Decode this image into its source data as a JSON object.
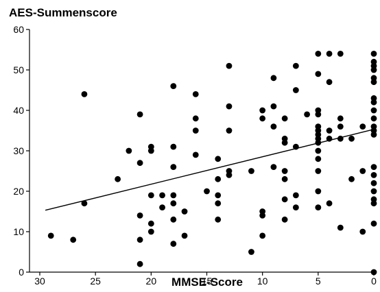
{
  "chart_data": {
    "type": "scatter",
    "title": "AES-Summenscore",
    "xlabel": "MMSE-Score",
    "ylabel": "",
    "x_reversed": true,
    "xlim": [
      30,
      0
    ],
    "ylim": [
      0,
      60
    ],
    "xticks": [
      "30",
      "25",
      "20",
      "15",
      "10",
      "5",
      "0"
    ],
    "yticks": [
      "0",
      "10",
      "20",
      "30",
      "40",
      "50",
      "60"
    ],
    "grid": false,
    "legend": "none",
    "marker_color": "#000000",
    "series": [
      {
        "points": [
          [
            29,
            9
          ],
          [
            27,
            8
          ],
          [
            26,
            44
          ],
          [
            26,
            17
          ],
          [
            23,
            23
          ],
          [
            22,
            30
          ],
          [
            21,
            39
          ],
          [
            21,
            27
          ],
          [
            21,
            14
          ],
          [
            21,
            8
          ],
          [
            21,
            2
          ],
          [
            20,
            31
          ],
          [
            20,
            30
          ],
          [
            20,
            19
          ],
          [
            20,
            12
          ],
          [
            20,
            10
          ],
          [
            19,
            19
          ],
          [
            19,
            16
          ],
          [
            18,
            46
          ],
          [
            18,
            31
          ],
          [
            18,
            26
          ],
          [
            18,
            19
          ],
          [
            18,
            17
          ],
          [
            18,
            13
          ],
          [
            18,
            7
          ],
          [
            17,
            15
          ],
          [
            17,
            9
          ],
          [
            16,
            44
          ],
          [
            16,
            38
          ],
          [
            16,
            35
          ],
          [
            16,
            29
          ],
          [
            15,
            20
          ],
          [
            14,
            28
          ],
          [
            14,
            23
          ],
          [
            14,
            19
          ],
          [
            14,
            17
          ],
          [
            14,
            13
          ],
          [
            13,
            51
          ],
          [
            13,
            41
          ],
          [
            13,
            35
          ],
          [
            13,
            25
          ],
          [
            13,
            24
          ],
          [
            11,
            25
          ],
          [
            11,
            5
          ],
          [
            10,
            40
          ],
          [
            10,
            38
          ],
          [
            10,
            15
          ],
          [
            10,
            14
          ],
          [
            10,
            9
          ],
          [
            9,
            48
          ],
          [
            9,
            41
          ],
          [
            9,
            36
          ],
          [
            9,
            26
          ],
          [
            8,
            38
          ],
          [
            8,
            33
          ],
          [
            8,
            32
          ],
          [
            8,
            25
          ],
          [
            8,
            23
          ],
          [
            8,
            18
          ],
          [
            8,
            13
          ],
          [
            7,
            51
          ],
          [
            7,
            45
          ],
          [
            7,
            31
          ],
          [
            7,
            19
          ],
          [
            7,
            16
          ],
          [
            6,
            39
          ],
          [
            5,
            54
          ],
          [
            5,
            49
          ],
          [
            5,
            40
          ],
          [
            5,
            39
          ],
          [
            5,
            36
          ],
          [
            5,
            35
          ],
          [
            5,
            34
          ],
          [
            5,
            33
          ],
          [
            5,
            32
          ],
          [
            5,
            30
          ],
          [
            5,
            28
          ],
          [
            5,
            25
          ],
          [
            5,
            20
          ],
          [
            5,
            16
          ],
          [
            4,
            54
          ],
          [
            4,
            47
          ],
          [
            4,
            35
          ],
          [
            4,
            33
          ],
          [
            4,
            17
          ],
          [
            3,
            54
          ],
          [
            3,
            38
          ],
          [
            3,
            36
          ],
          [
            3,
            33
          ],
          [
            3,
            11
          ],
          [
            2,
            33
          ],
          [
            2,
            23
          ],
          [
            1,
            36
          ],
          [
            1,
            25
          ],
          [
            1,
            10
          ],
          [
            0,
            54
          ],
          [
            0,
            52
          ],
          [
            0,
            51
          ],
          [
            0,
            50
          ],
          [
            0,
            48
          ],
          [
            0,
            47
          ],
          [
            0,
            43
          ],
          [
            0,
            42
          ],
          [
            0,
            40
          ],
          [
            0,
            38
          ],
          [
            0,
            36
          ],
          [
            0,
            35
          ],
          [
            0,
            34
          ],
          [
            0,
            26
          ],
          [
            0,
            24
          ],
          [
            0,
            22
          ],
          [
            0,
            20
          ],
          [
            0,
            18
          ],
          [
            0,
            17
          ],
          [
            0,
            12
          ],
          [
            0,
            0
          ]
        ]
      }
    ],
    "trendline": {
      "from": [
        29.5,
        15.3
      ],
      "to": [
        0,
        35.3
      ]
    }
  }
}
